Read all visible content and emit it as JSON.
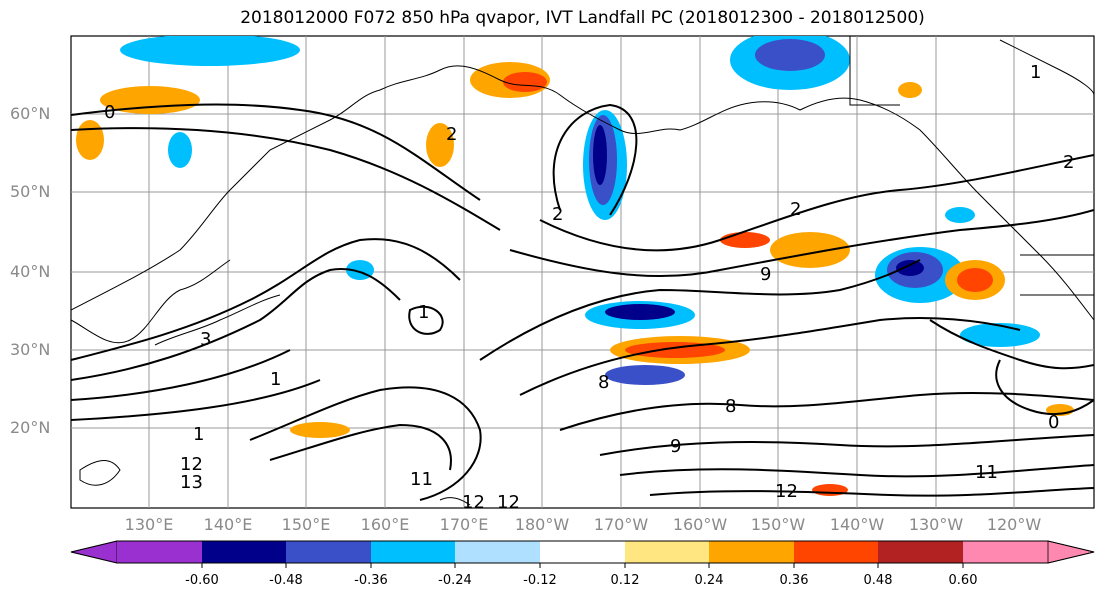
{
  "title": "2018012000 F072 850 hPa qvapor, IVT Landfall PC (2018012300 - 2018012500)",
  "map": {
    "lat_labels": [
      "60°N",
      "50°N",
      "40°N",
      "30°N",
      "20°N"
    ],
    "lon_labels": [
      "130°E",
      "140°E",
      "150°E",
      "160°E",
      "170°E",
      "180°W",
      "170°W",
      "160°W",
      "150°W",
      "140°W",
      "130°W",
      "120°W"
    ],
    "contour_labels": [
      "0",
      "2",
      "1",
      "1",
      "3",
      "1",
      "2",
      "1",
      "12",
      "11",
      "12",
      "13",
      "12",
      "2",
      "9",
      "8",
      "8",
      "9",
      "12",
      "11",
      "0",
      "2"
    ],
    "projection": "plate carree",
    "gridlines": true
  },
  "colorbar": {
    "tick_labels": [
      "-0.60",
      "-0.48",
      "-0.36",
      "-0.24",
      "-0.12",
      "0.12",
      "0.24",
      "0.36",
      "0.48",
      "0.60"
    ],
    "colors": [
      "#9b30d0",
      "#00008b",
      "#3a50c8",
      "#00bfff",
      "#b0e0ff",
      "#ffffff",
      "#ffe680",
      "#ffa500",
      "#ff4500",
      "#b22222",
      "#ff88b0"
    ],
    "extend": "both"
  }
}
